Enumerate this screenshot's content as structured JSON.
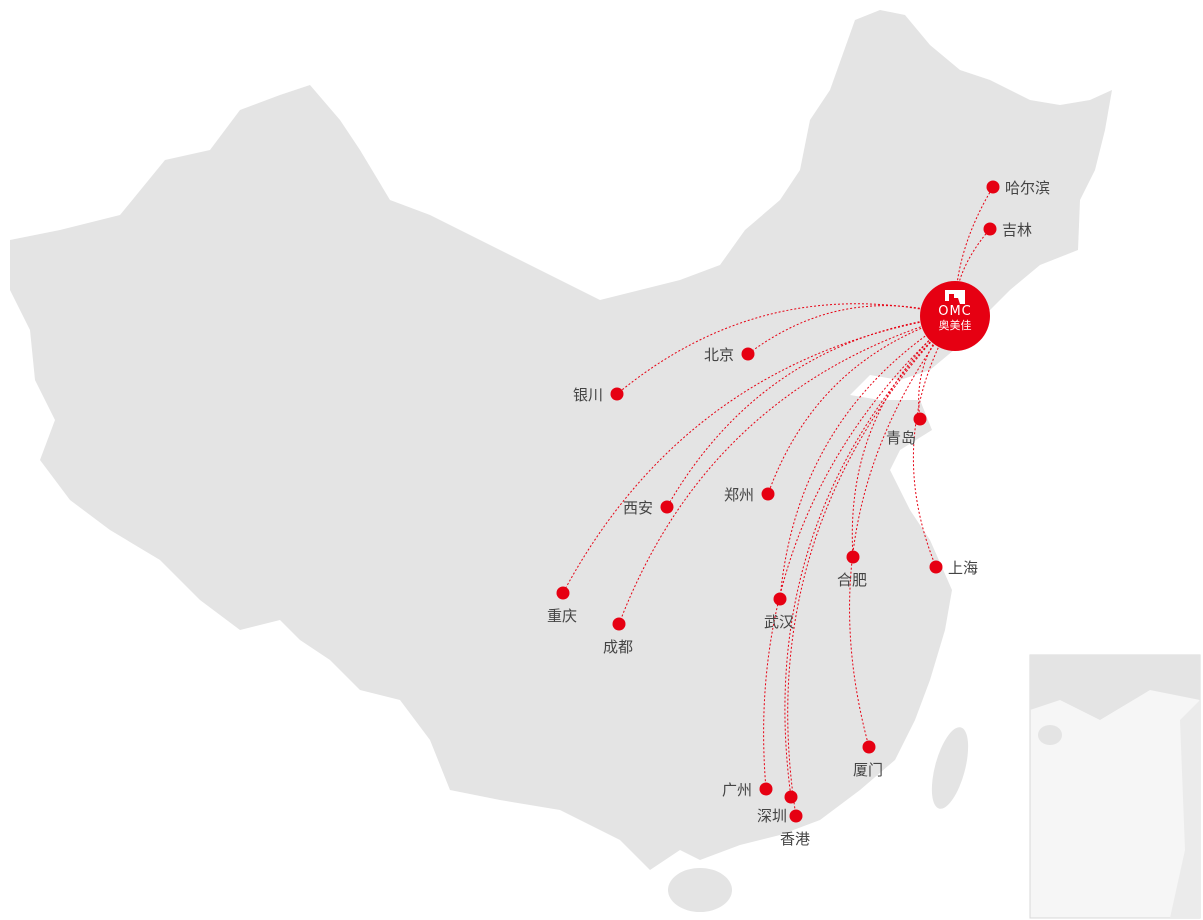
{
  "logo": {
    "text": "OMC",
    "name": "奥美佳"
  },
  "colors": {
    "accent": "#e60012",
    "land": "#e4e4e4",
    "background": "#ffffff"
  },
  "cities": [
    {
      "name": "哈尔滨"
    },
    {
      "name": "吉林"
    },
    {
      "name": "北京"
    },
    {
      "name": "银川"
    },
    {
      "name": "青岛"
    },
    {
      "name": "西安"
    },
    {
      "name": "郑州"
    },
    {
      "name": "合肥"
    },
    {
      "name": "上海"
    },
    {
      "name": "重庆"
    },
    {
      "name": "成都"
    },
    {
      "name": "武汉"
    },
    {
      "name": "厦门"
    },
    {
      "name": "广州"
    },
    {
      "name": "深圳"
    },
    {
      "name": "香港"
    }
  ]
}
